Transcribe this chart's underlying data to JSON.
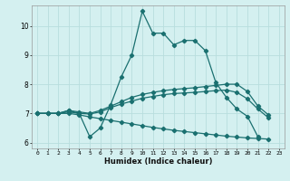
{
  "xlabel": "Humidex (Indice chaleur)",
  "bg_color": "#d4f0f0",
  "grid_color": "#b8dede",
  "line_color": "#1a7070",
  "xlim": [
    -0.5,
    23.5
  ],
  "ylim": [
    5.8,
    10.7
  ],
  "yticks": [
    6,
    7,
    8,
    9,
    10
  ],
  "xticks": [
    0,
    1,
    2,
    3,
    4,
    5,
    6,
    7,
    8,
    9,
    10,
    11,
    12,
    13,
    14,
    15,
    16,
    17,
    18,
    19,
    20,
    21,
    22,
    23
  ],
  "lines": [
    {
      "x": [
        0,
        1,
        2,
        3,
        4,
        5,
        6,
        7,
        8,
        9,
        10,
        11,
        12,
        13,
        14,
        15,
        16,
        17,
        18,
        19,
        20,
        21,
        22,
        23
      ],
      "y": [
        7.0,
        7.0,
        7.0,
        7.1,
        7.0,
        6.2,
        6.5,
        7.3,
        8.25,
        9.0,
        10.5,
        9.75,
        9.75,
        9.35,
        9.5,
        9.5,
        9.15,
        8.05,
        7.55,
        7.15,
        6.9,
        6.2,
        null,
        null
      ]
    },
    {
      "x": [
        0,
        1,
        2,
        3,
        4,
        5,
        6,
        7,
        8,
        9,
        10,
        11,
        12,
        13,
        14,
        15,
        16,
        17,
        18,
        19,
        20,
        21,
        22,
        23
      ],
      "y": [
        7.0,
        7.0,
        7.0,
        7.1,
        7.05,
        7.0,
        7.1,
        7.25,
        7.4,
        7.55,
        7.65,
        7.72,
        7.78,
        7.82,
        7.85,
        7.88,
        7.92,
        7.96,
        8.0,
        8.0,
        7.75,
        7.25,
        6.95,
        null
      ]
    },
    {
      "x": [
        0,
        1,
        2,
        3,
        4,
        5,
        6,
        7,
        8,
        9,
        10,
        11,
        12,
        13,
        14,
        15,
        16,
        17,
        18,
        19,
        20,
        21,
        22,
        23
      ],
      "y": [
        7.0,
        7.0,
        7.0,
        7.05,
        7.0,
        6.98,
        7.05,
        7.2,
        7.32,
        7.42,
        7.52,
        7.58,
        7.64,
        7.68,
        7.7,
        7.72,
        7.75,
        7.78,
        7.8,
        7.72,
        7.5,
        7.15,
        6.85,
        null
      ]
    },
    {
      "x": [
        0,
        1,
        2,
        3,
        4,
        5,
        6,
        7,
        8,
        9,
        10,
        11,
        12,
        13,
        14,
        15,
        16,
        17,
        18,
        19,
        20,
        21,
        22,
        23
      ],
      "y": [
        7.0,
        7.0,
        7.0,
        7.0,
        6.95,
        6.88,
        6.82,
        6.76,
        6.7,
        6.64,
        6.58,
        6.52,
        6.47,
        6.42,
        6.38,
        6.34,
        6.3,
        6.26,
        6.22,
        6.19,
        6.16,
        6.14,
        6.12,
        null
      ]
    }
  ],
  "marker": "D",
  "markersize": 2.2,
  "linewidth": 0.9
}
